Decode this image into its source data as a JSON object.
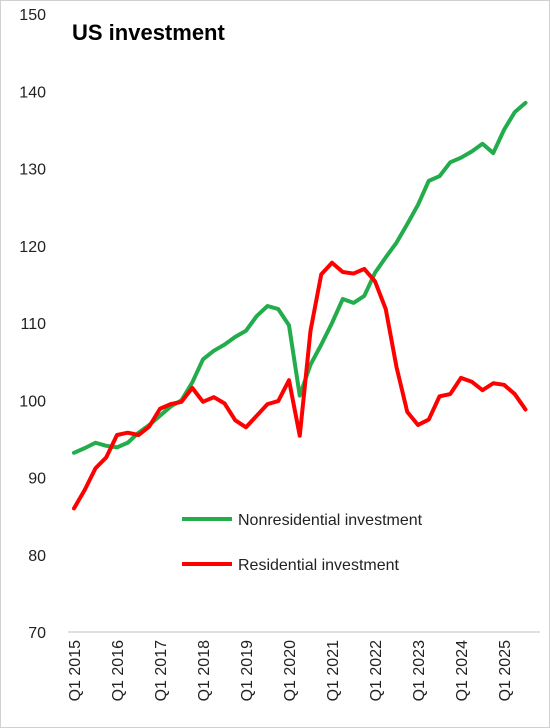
{
  "chart_data": {
    "type": "line",
    "title": "US investment",
    "categories": [
      "Q1 2015",
      null,
      null,
      null,
      "Q1 2016",
      null,
      null,
      null,
      "Q1 2017",
      null,
      null,
      null,
      "Q1 2018",
      null,
      null,
      null,
      "Q1 2019",
      null,
      null,
      null,
      "Q1 2020",
      null,
      null,
      null,
      "Q1 2021",
      null,
      null,
      null,
      "Q1 2022",
      null,
      null,
      null,
      "Q1 2023",
      null,
      null,
      null,
      "Q1 2024",
      null,
      null,
      null,
      "Q1 2025",
      null,
      null
    ],
    "series": [
      {
        "name": "Nonresidential investment",
        "color": "#22ac4c",
        "values": [
          93.2,
          93.8,
          94.5,
          94.1,
          93.9,
          94.5,
          95.8,
          96.8,
          98.0,
          99.2,
          100.0,
          102.3,
          105.3,
          106.4,
          107.2,
          108.2,
          109.0,
          110.9,
          112.2,
          111.8,
          109.7,
          100.6,
          104.6,
          107.2,
          110.0,
          113.1,
          112.6,
          113.5,
          116.5,
          118.5,
          120.4,
          122.8,
          125.3,
          128.4,
          129.0,
          130.8,
          131.4,
          132.2,
          133.2,
          132.0,
          135.0,
          137.3,
          138.5
        ]
      },
      {
        "name": "Residential investment",
        "color": "#ff0000",
        "values": [
          86.0,
          88.4,
          91.2,
          92.6,
          95.5,
          95.8,
          95.5,
          96.6,
          98.9,
          99.5,
          99.8,
          101.6,
          99.8,
          100.4,
          99.6,
          97.4,
          96.5,
          98.0,
          99.5,
          99.9,
          102.6,
          95.4,
          109.0,
          116.3,
          117.8,
          116.6,
          116.4,
          117.0,
          115.4,
          111.8,
          104.3,
          98.5,
          96.8,
          97.5,
          100.5,
          100.8,
          102.9,
          102.4,
          101.3,
          102.2,
          102.0,
          100.8,
          98.8
        ]
      }
    ],
    "ylim": [
      70,
      150
    ],
    "yticks": [
      70,
      80,
      90,
      100,
      110,
      120,
      130,
      140,
      150
    ]
  }
}
